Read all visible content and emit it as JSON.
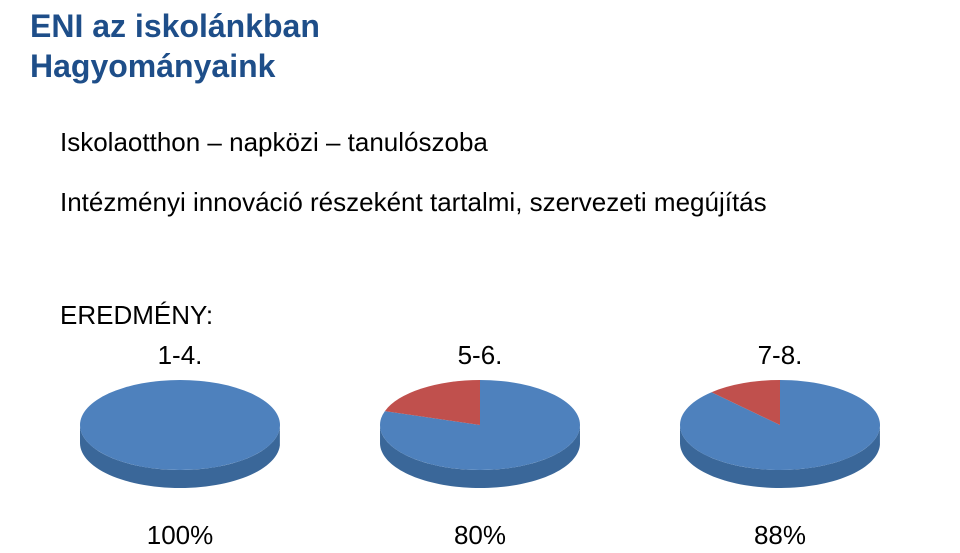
{
  "title": {
    "line1": "ENI az iskolánkban",
    "line2": "Hagyományaink",
    "color": "#1e4e89",
    "fontsize": 32,
    "fontweight": 700
  },
  "body": {
    "line1": "Iskolaotthon – napközi – tanulószoba",
    "line2": "Intézményi innováció részeként tartalmi, szervezeti megújítás",
    "fontsize": 26,
    "color": "#000000"
  },
  "result_label": "EREDMÉNY:",
  "charts": {
    "type": "pie",
    "colors": {
      "main_top": "#4e81bd",
      "main_side": "#3a6799",
      "remainder_top": "#c0504d",
      "remainder_side": "#933c39",
      "background": "#ffffff"
    },
    "pie_width": 210,
    "pie_height": 120,
    "tilt": 0.45,
    "depth": 18,
    "items": [
      {
        "label": "1-4.",
        "value": 100,
        "percent_text": "100%"
      },
      {
        "label": "5-6.",
        "value": 80,
        "percent_text": "80%"
      },
      {
        "label": "7-8.",
        "value": 88,
        "percent_text": "88%"
      }
    ],
    "label_fontsize": 26,
    "percent_fontsize": 26
  }
}
